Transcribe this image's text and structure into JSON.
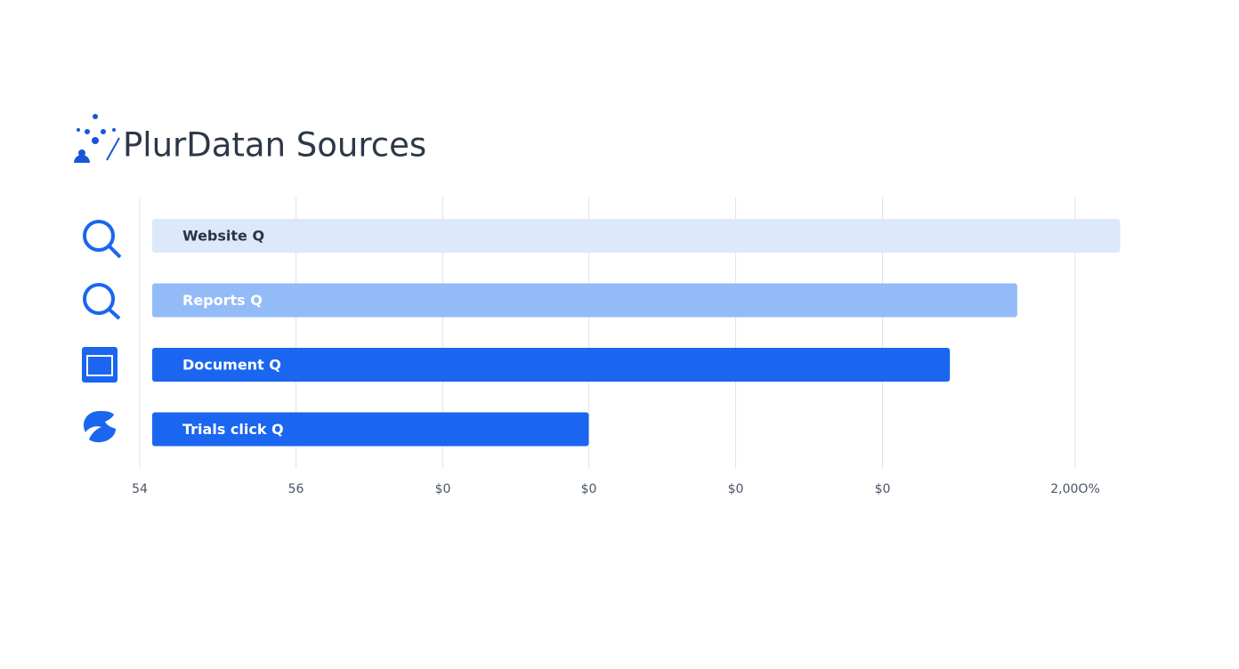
{
  "chart_data": {
    "type": "barh",
    "title": "PlurDatan Sources",
    "categories": [
      "Website Q",
      "Reports Q",
      "Document Q",
      "Trials click Q"
    ],
    "values": [
      104.8,
      93.8,
      86.6,
      48.0
    ],
    "colors": [
      "#dce9fb",
      "#93bbf7",
      "#1a66f0",
      "#1a66f0"
    ],
    "label_colors": [
      "#2b3445",
      "#ffffff",
      "#ffffff",
      "#ffffff"
    ],
    "xlim": [
      0,
      105
    ],
    "xticks": [
      {
        "value": 0,
        "label": "54"
      },
      {
        "value": 16.7,
        "label": "56"
      },
      {
        "value": 32.4,
        "label": "$0"
      },
      {
        "value": 48.0,
        "label": "$0"
      },
      {
        "value": 63.7,
        "label": "$0"
      },
      {
        "value": 79.4,
        "label": "$0"
      },
      {
        "value": 100,
        "label": "2,00O%"
      }
    ],
    "grid": true
  }
}
